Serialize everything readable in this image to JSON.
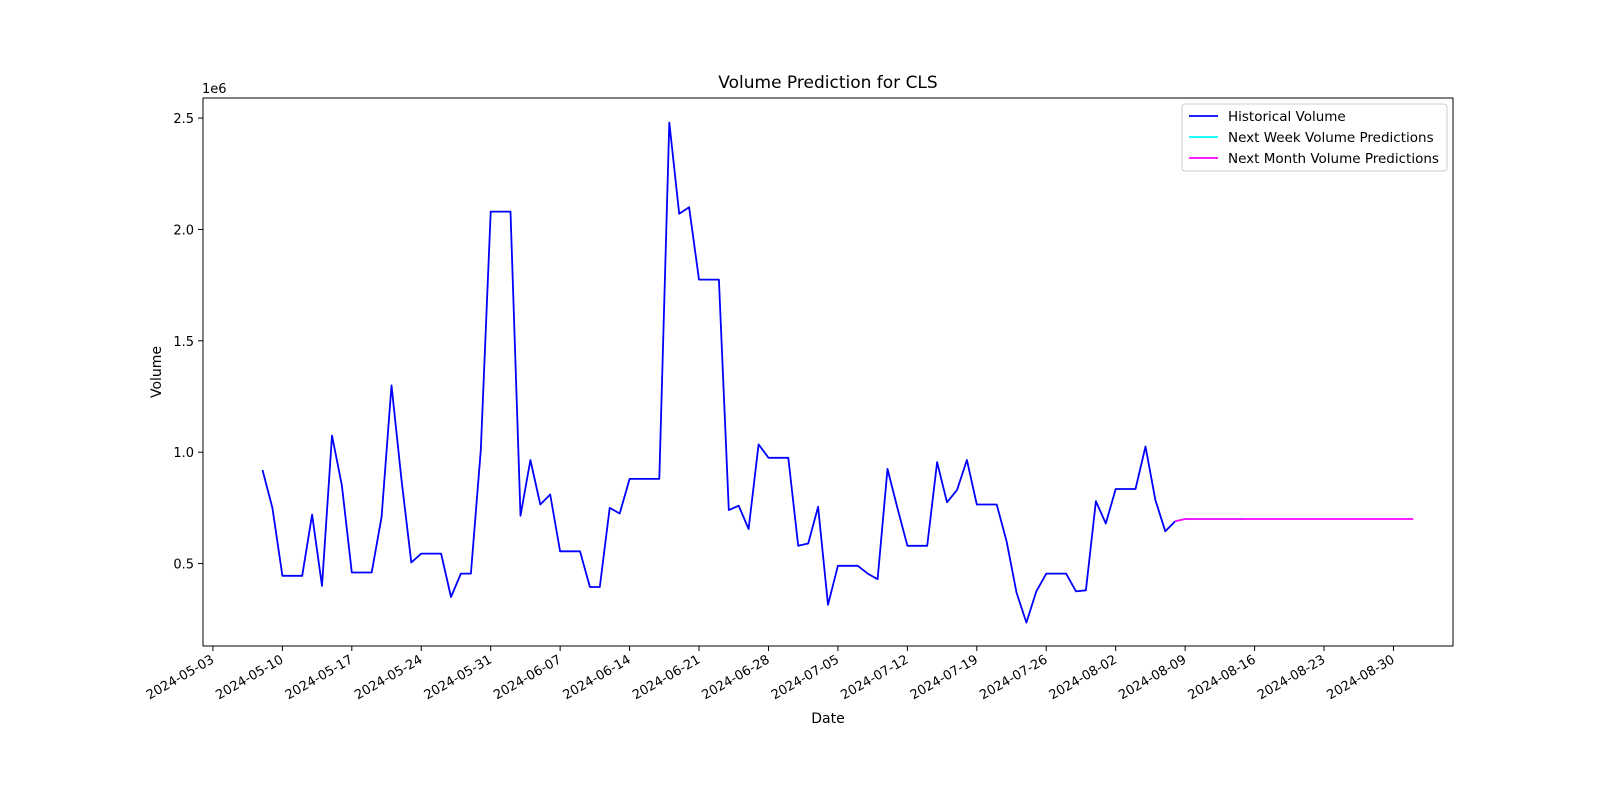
{
  "chart_data": {
    "type": "line",
    "title": "Volume Prediction for CLS",
    "xlabel": "Date",
    "ylabel": "Volume",
    "y_offset_label": "1e6",
    "y_scale": 1000000,
    "ylim": [
      130000,
      2590000
    ],
    "xlim": [
      "2024-05-02",
      "2024-09-05"
    ],
    "grid": false,
    "legend_position": "top-right",
    "x_ticks": [
      "2024-05-03",
      "2024-05-10",
      "2024-05-17",
      "2024-05-24",
      "2024-05-31",
      "2024-06-07",
      "2024-06-14",
      "2024-06-21",
      "2024-06-28",
      "2024-07-05",
      "2024-07-12",
      "2024-07-19",
      "2024-07-26",
      "2024-08-02",
      "2024-08-09",
      "2024-08-16",
      "2024-08-23",
      "2024-08-30"
    ],
    "y_ticks": [
      {
        "value": 500000,
        "label": "0.5"
      },
      {
        "value": 1000000,
        "label": "1.0"
      },
      {
        "value": 1500000,
        "label": "1.5"
      },
      {
        "value": 2000000,
        "label": "2.0"
      },
      {
        "value": 2500000,
        "label": "2.5"
      }
    ],
    "series": [
      {
        "name": "Historical Volume",
        "color": "#0000ff",
        "x": [
          "2024-05-08",
          "2024-05-09",
          "2024-05-10",
          "2024-05-11",
          "2024-05-12",
          "2024-05-13",
          "2024-05-14",
          "2024-05-15",
          "2024-05-16",
          "2024-05-17",
          "2024-05-18",
          "2024-05-19",
          "2024-05-20",
          "2024-05-21",
          "2024-05-22",
          "2024-05-23",
          "2024-05-24",
          "2024-05-25",
          "2024-05-26",
          "2024-05-27",
          "2024-05-28",
          "2024-05-29",
          "2024-05-30",
          "2024-05-31",
          "2024-06-01",
          "2024-06-02",
          "2024-06-03",
          "2024-06-04",
          "2024-06-05",
          "2024-06-06",
          "2024-06-07",
          "2024-06-08",
          "2024-06-09",
          "2024-06-10",
          "2024-06-11",
          "2024-06-12",
          "2024-06-13",
          "2024-06-14",
          "2024-06-15",
          "2024-06-16",
          "2024-06-17",
          "2024-06-18",
          "2024-06-19",
          "2024-06-20",
          "2024-06-21",
          "2024-06-22",
          "2024-06-23",
          "2024-06-24",
          "2024-06-25",
          "2024-06-26",
          "2024-06-27",
          "2024-06-28",
          "2024-06-29",
          "2024-06-30",
          "2024-07-01",
          "2024-07-02",
          "2024-07-03",
          "2024-07-04",
          "2024-07-05",
          "2024-07-06",
          "2024-07-07",
          "2024-07-08",
          "2024-07-09",
          "2024-07-10",
          "2024-07-11",
          "2024-07-12",
          "2024-07-13",
          "2024-07-14",
          "2024-07-15",
          "2024-07-16",
          "2024-07-17",
          "2024-07-18",
          "2024-07-19",
          "2024-07-20",
          "2024-07-21",
          "2024-07-22",
          "2024-07-23",
          "2024-07-24",
          "2024-07-25",
          "2024-07-26",
          "2024-07-27",
          "2024-07-28",
          "2024-07-29",
          "2024-07-30",
          "2024-07-31",
          "2024-08-01",
          "2024-08-02",
          "2024-08-03",
          "2024-08-04",
          "2024-08-05",
          "2024-08-06",
          "2024-08-07",
          "2024-08-08"
        ],
        "y": [
          920000,
          750000,
          445000,
          445000,
          445000,
          720000,
          400000,
          1075000,
          850000,
          460000,
          460000,
          460000,
          710000,
          1300000,
          880000,
          505000,
          545000,
          545000,
          545000,
          350000,
          455000,
          455000,
          1010000,
          2080000,
          2080000,
          2080000,
          715000,
          965000,
          765000,
          810000,
          555000,
          555000,
          555000,
          395000,
          395000,
          750000,
          725000,
          880000,
          880000,
          880000,
          880000,
          2480000,
          2070000,
          2100000,
          1775000,
          1775000,
          1775000,
          740000,
          760000,
          655000,
          1035000,
          975000,
          975000,
          975000,
          580000,
          590000,
          755000,
          315000,
          490000,
          490000,
          490000,
          455000,
          430000,
          925000,
          750000,
          580000,
          580000,
          580000,
          955000,
          775000,
          830000,
          965000,
          765000,
          765000,
          765000,
          600000,
          370000,
          235000,
          375000,
          455000,
          455000,
          455000,
          375000,
          380000,
          780000,
          680000,
          835000,
          835000,
          835000,
          1025000,
          785000,
          645000,
          690000
        ]
      },
      {
        "name": "Next Week Volume Predictions",
        "color": "#00ffff",
        "x": [
          "2024-08-08",
          "2024-08-09",
          "2024-08-10",
          "2024-08-11",
          "2024-08-12",
          "2024-08-13",
          "2024-08-14",
          "2024-08-15"
        ],
        "y": [
          690000,
          700000,
          700000,
          700000,
          700000,
          700000,
          700000,
          700000
        ]
      },
      {
        "name": "Next Month Volume Predictions",
        "color": "#ff00ff",
        "x": [
          "2024-08-08",
          "2024-08-09",
          "2024-08-12",
          "2024-08-16",
          "2024-08-20",
          "2024-08-24",
          "2024-08-28",
          "2024-09-01"
        ],
        "y": [
          690000,
          700000,
          700000,
          700000,
          700000,
          700000,
          700000,
          700000
        ]
      }
    ]
  }
}
